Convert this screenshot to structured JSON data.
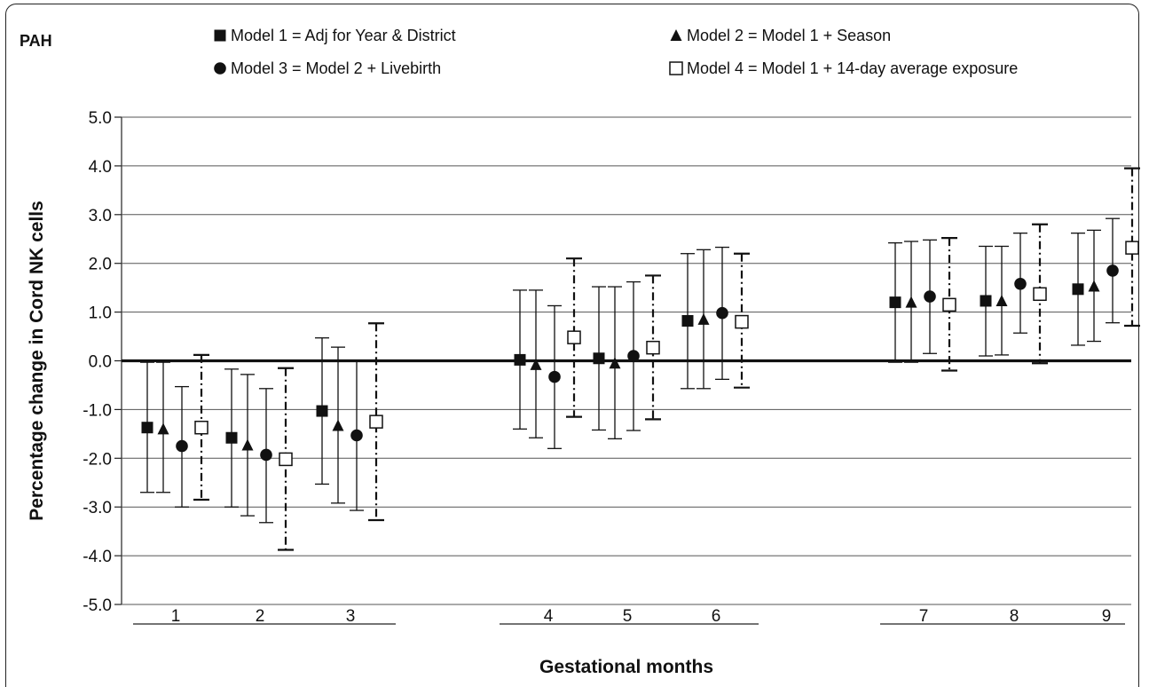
{
  "chart_data": {
    "type": "scatter",
    "panel_label": "PAH",
    "xlabel": "Gestational months",
    "ylabel": "Percentage change in Cord NK cells",
    "ylim": [
      -5.0,
      5.0
    ],
    "yticks": [
      "5.0",
      "4.0",
      "3.0",
      "2.0",
      "1.0",
      "0.0",
      "-1.0",
      "-2.0",
      "-3.0",
      "-4.0",
      "-5.0"
    ],
    "categories": [
      "1",
      "2",
      "3",
      "4",
      "5",
      "6",
      "7",
      "8",
      "9"
    ],
    "grid": true,
    "legend_position": "top",
    "series": [
      {
        "name": "Model 1 = Adj for Year & District",
        "marker": "filled-square",
        "line": "solid",
        "values": [
          -1.37,
          -1.58,
          -1.03,
          0.02,
          0.05,
          0.82,
          1.2,
          1.23,
          1.47
        ],
        "lower": [
          -2.7,
          -3.0,
          -2.53,
          -1.4,
          -1.42,
          -0.57,
          -0.03,
          0.1,
          0.32
        ],
        "upper": [
          -0.03,
          -0.17,
          0.47,
          1.45,
          1.52,
          2.2,
          2.42,
          2.35,
          2.62
        ]
      },
      {
        "name": "Model 2 = Model 1 + Season",
        "marker": "filled-triangle",
        "line": "solid",
        "values": [
          -1.4,
          -1.73,
          -1.33,
          -0.08,
          -0.05,
          0.85,
          1.2,
          1.23,
          1.53
        ],
        "lower": [
          -2.7,
          -3.18,
          -2.92,
          -1.58,
          -1.6,
          -0.57,
          -0.03,
          0.12,
          0.4
        ],
        "upper": [
          -0.03,
          -0.28,
          0.28,
          1.45,
          1.52,
          2.28,
          2.45,
          2.35,
          2.68
        ]
      },
      {
        "name": "Model 3 = Model 2 + Livebirth",
        "marker": "filled-circle",
        "line": "solid",
        "values": [
          -1.75,
          -1.93,
          -1.53,
          -0.33,
          0.1,
          0.98,
          1.32,
          1.58,
          1.85
        ],
        "lower": [
          -3.0,
          -3.32,
          -3.07,
          -1.8,
          -1.43,
          -0.38,
          0.15,
          0.57,
          0.78
        ],
        "upper": [
          -0.53,
          -0.57,
          0.0,
          1.13,
          1.62,
          2.33,
          2.48,
          2.62,
          2.92
        ]
      },
      {
        "name": "Model 4 = Model 1 + 14-day average exposure",
        "marker": "open-square",
        "line": "dash-dot",
        "values": [
          -1.37,
          -2.02,
          -1.25,
          0.48,
          0.27,
          0.8,
          1.15,
          1.37,
          2.32
        ],
        "lower": [
          -2.85,
          -3.88,
          -3.27,
          -1.15,
          -1.2,
          -0.55,
          -0.2,
          -0.05,
          0.72
        ],
        "upper": [
          0.12,
          -0.15,
          0.77,
          2.1,
          1.75,
          2.2,
          2.52,
          2.8,
          3.95
        ]
      }
    ]
  }
}
